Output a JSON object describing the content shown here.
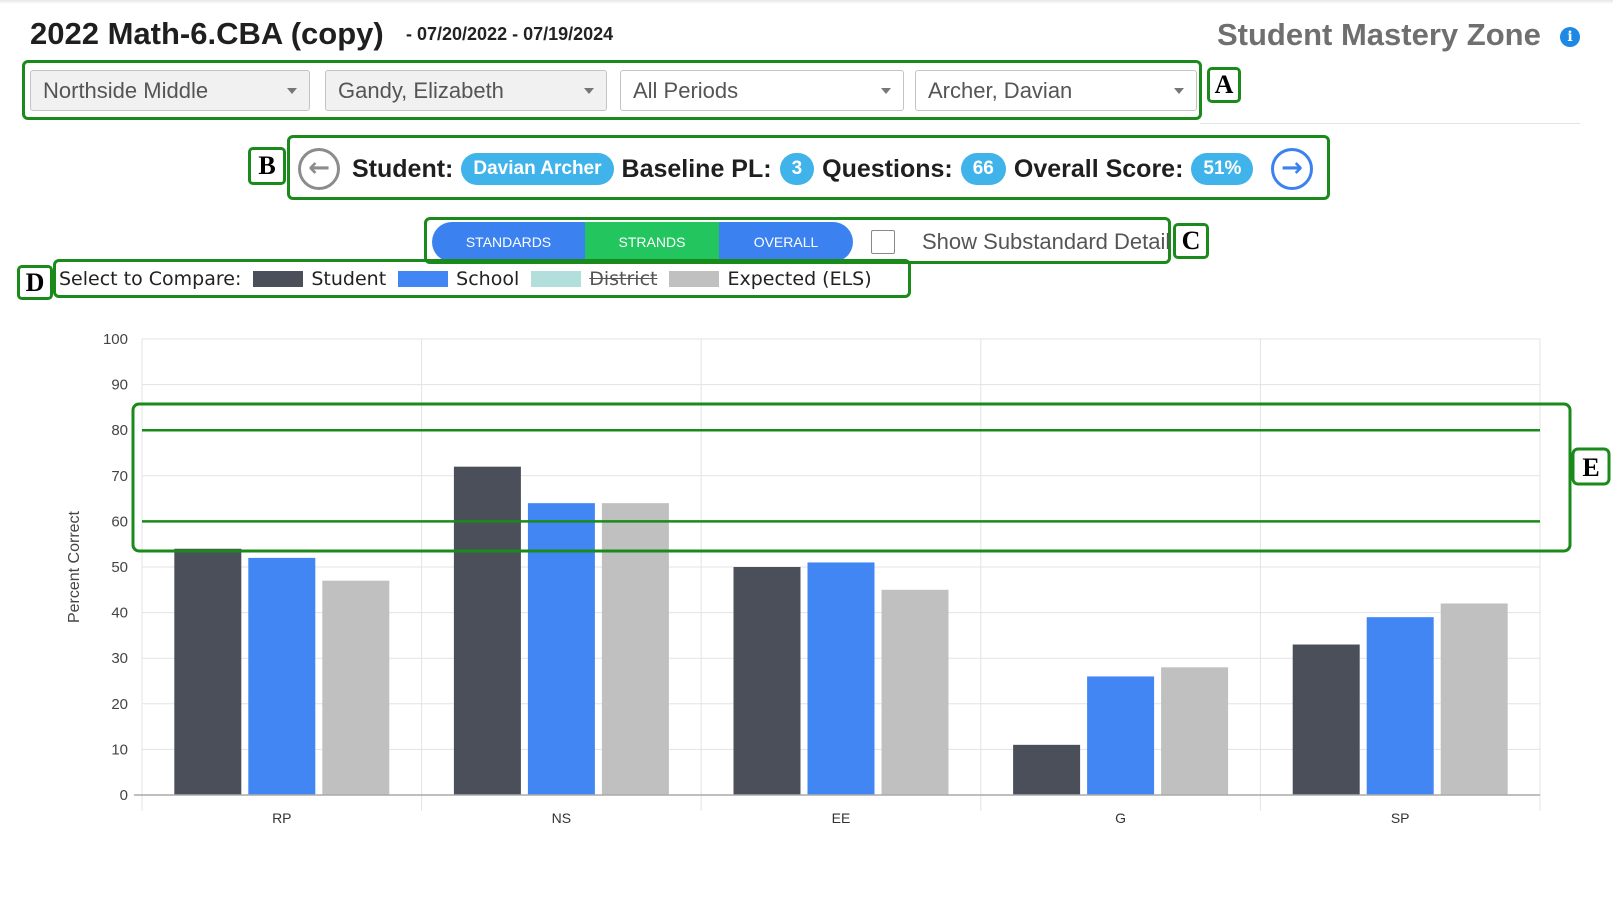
{
  "header": {
    "title": "2022 Math-6.CBA (copy)",
    "date_range": "- 07/20/2022 - 07/19/2024",
    "app_title": "Student Mastery Zone"
  },
  "filters": {
    "school": "Northside Middle",
    "teacher": "Gandy, Elizabeth",
    "period": "All Periods",
    "student": "Archer, Davian"
  },
  "student_bar": {
    "student_label": "Student:",
    "student_name": "Davian Archer",
    "baseline_label": "Baseline PL:",
    "baseline_value": "3",
    "questions_label": "Questions:",
    "questions_value": "66",
    "overall_label": "Overall Score:",
    "overall_value": "51%"
  },
  "view_tabs": {
    "standards": "STANDARDS",
    "strands": "STRANDS",
    "overall": "OVERALL",
    "active": "STRANDS"
  },
  "substandard_toggle": {
    "label": "Show Substandard Detail",
    "checked": false
  },
  "legend": {
    "prompt": "Select to Compare:",
    "items": [
      {
        "label": "Student",
        "color": "#4a4f5a",
        "enabled": true
      },
      {
        "label": "School",
        "color": "#4286f4",
        "enabled": true
      },
      {
        "label": "District",
        "color": "#b2dfdb",
        "enabled": false
      },
      {
        "label": "Expected (ELS)",
        "color": "#c0c0c0",
        "enabled": true
      }
    ]
  },
  "annotations": [
    "A",
    "B",
    "C",
    "D",
    "E"
  ],
  "chart_data": {
    "type": "bar",
    "categories": [
      "RP",
      "NS",
      "EE",
      "G",
      "SP"
    ],
    "series": [
      {
        "name": "Student",
        "color": "#4a4f5a",
        "values": [
          54,
          72,
          50,
          11,
          33
        ]
      },
      {
        "name": "School",
        "color": "#4286f4",
        "values": [
          52,
          64,
          51,
          26,
          39
        ]
      },
      {
        "name": "Expected (ELS)",
        "color": "#c0c0c0",
        "values": [
          47,
          64,
          45,
          28,
          42
        ]
      }
    ],
    "reference_lines": [
      80,
      60
    ],
    "reference_line_color": "#1a8a1a",
    "ylabel": "Percent Correct",
    "ylim": [
      0,
      100
    ],
    "yticks": [
      0,
      10,
      20,
      30,
      40,
      50,
      60,
      70,
      80,
      90,
      100
    ],
    "grid": true
  }
}
